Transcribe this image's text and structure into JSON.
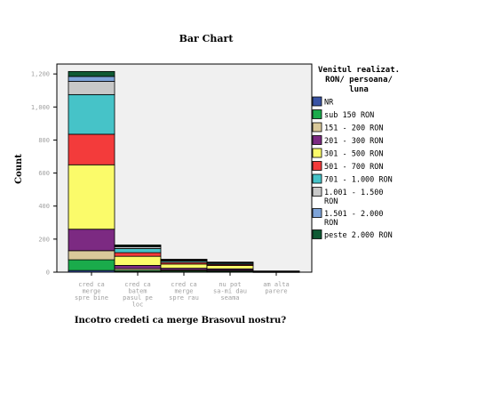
{
  "chart_data": {
    "type": "bar",
    "stacked": true,
    "title": "Bar Chart",
    "xlabel": "Incotro credeti ca merge Brasovul nostru?",
    "ylabel": "Count",
    "ylim": [
      0,
      1260
    ],
    "yticks": [
      0,
      200,
      400,
      600,
      800,
      1000,
      1200
    ],
    "ytick_labels": [
      "0",
      "200",
      "400",
      "600",
      "800",
      "1,000",
      "1,200"
    ],
    "categories": [
      [
        "cred ca",
        "merge",
        "spre bine"
      ],
      [
        "cred ca",
        "batem",
        "pasul pe",
        "loc"
      ],
      [
        "cred ca",
        "merge",
        "spre rau"
      ],
      [
        "nu pot",
        "sa-mi dau",
        "seama"
      ],
      [
        "am alta",
        "parere"
      ]
    ],
    "legend_title": [
      "Venitul realizat.",
      "RON/ persoana/",
      "luna"
    ],
    "legend_position": "right",
    "grid": false,
    "series": [
      {
        "name": "NR",
        "color": "#3953a4",
        "values": [
          10,
          3,
          2,
          2,
          0
        ]
      },
      {
        "name": "sub 150 RON",
        "color": "#1aab4b",
        "values": [
          65,
          8,
          6,
          5,
          1
        ]
      },
      {
        "name": "151 - 200 RON",
        "color": "#d9c99a",
        "values": [
          55,
          10,
          6,
          5,
          1
        ]
      },
      {
        "name": "201 - 300 RON",
        "color": "#7c2a82",
        "values": [
          130,
          20,
          10,
          8,
          1
        ]
      },
      {
        "name": "301 - 500 RON",
        "color": "#fbfb6a",
        "values": [
          390,
          55,
          25,
          20,
          2
        ]
      },
      {
        "name": "501 - 700 RON",
        "color": "#f33b3b",
        "values": [
          185,
          22,
          10,
          7,
          1
        ]
      },
      {
        "name": "701 - 1.000 RON",
        "color": "#46c3c8",
        "values": [
          240,
          25,
          8,
          6,
          1
        ]
      },
      {
        "name": [
          "1.001 - 1.500",
          "RON"
        ],
        "color": "#c8c8c8",
        "values": [
          80,
          10,
          5,
          4,
          0
        ]
      },
      {
        "name": [
          "1.501 - 2.000",
          "RON"
        ],
        "color": "#7da3d8",
        "values": [
          30,
          5,
          3,
          2,
          0
        ]
      },
      {
        "name": "peste 2.000 RON",
        "color": "#0f5a34",
        "values": [
          30,
          7,
          3,
          2,
          0
        ]
      }
    ]
  }
}
